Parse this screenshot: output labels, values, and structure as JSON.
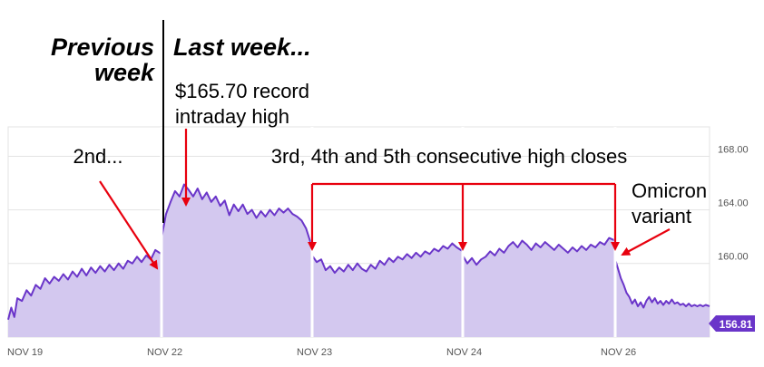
{
  "colors": {
    "line": "#6a35c9",
    "fill": "#d3c8ef",
    "annotation": "#e8000e",
    "grid": "#e3e3e3",
    "badge_bg": "#6a35c9",
    "badge_text": "#ffffff",
    "axis_text": "#555555",
    "divider": "#000000",
    "session_gap": "#ffffff"
  },
  "headings": {
    "previous_line1": "Previous",
    "previous_line2": "week",
    "last": "Last week..."
  },
  "annotations": {
    "record_line1": "$165.70 record",
    "record_line2": "intraday high",
    "second": "2nd...",
    "consecutive": "3rd, 4th and 5th consecutive high closes",
    "omicron_line1": "Omicron",
    "omicron_line2": "variant"
  },
  "chart_data": {
    "type": "area",
    "title": "",
    "xlabel": "",
    "ylabel": "",
    "ylim": [
      154.5,
      170.2
    ],
    "yticks": [
      160,
      164,
      168
    ],
    "ytick_labels": [
      "160.00",
      "164.00",
      "168.00"
    ],
    "xtick_labels": [
      "NOV 19",
      "NOV 22",
      "NOV 23",
      "NOV 24",
      "NOV 26"
    ],
    "sessions": [
      "NOV 19",
      "NOV 22",
      "NOV 23",
      "NOV 24",
      "NOV 26"
    ],
    "last_price_label": "156.81",
    "last_price": 156.81,
    "grid": true,
    "series": [
      {
        "sessions": [
          [
            [
              0.0,
              155.8
            ],
            [
              0.02,
              156.7
            ],
            [
              0.04,
              156.0
            ],
            [
              0.06,
              157.4
            ],
            [
              0.09,
              157.2
            ],
            [
              0.12,
              158.0
            ],
            [
              0.15,
              157.6
            ],
            [
              0.18,
              158.4
            ],
            [
              0.21,
              158.1
            ],
            [
              0.24,
              158.9
            ],
            [
              0.27,
              158.5
            ],
            [
              0.3,
              159.0
            ],
            [
              0.33,
              158.7
            ],
            [
              0.36,
              159.2
            ],
            [
              0.39,
              158.8
            ],
            [
              0.42,
              159.4
            ],
            [
              0.45,
              159.0
            ],
            [
              0.48,
              159.6
            ],
            [
              0.51,
              159.1
            ],
            [
              0.54,
              159.7
            ],
            [
              0.57,
              159.3
            ],
            [
              0.6,
              159.8
            ],
            [
              0.63,
              159.4
            ],
            [
              0.66,
              159.9
            ],
            [
              0.69,
              159.5
            ],
            [
              0.72,
              160.0
            ],
            [
              0.75,
              159.6
            ],
            [
              0.78,
              160.2
            ],
            [
              0.81,
              160.0
            ],
            [
              0.84,
              160.5
            ],
            [
              0.87,
              160.1
            ],
            [
              0.9,
              160.6
            ],
            [
              0.93,
              160.3
            ],
            [
              0.96,
              161.0
            ],
            [
              1.0,
              160.7
            ]
          ],
          [
            [
              0.0,
              161.9
            ],
            [
              0.03,
              163.7
            ],
            [
              0.06,
              164.6
            ],
            [
              0.09,
              165.4
            ],
            [
              0.12,
              165.0
            ],
            [
              0.15,
              165.9
            ],
            [
              0.18,
              165.5
            ],
            [
              0.21,
              165.0
            ],
            [
              0.24,
              165.6
            ],
            [
              0.27,
              164.8
            ],
            [
              0.3,
              165.3
            ],
            [
              0.33,
              164.6
            ],
            [
              0.36,
              165.0
            ],
            [
              0.39,
              164.3
            ],
            [
              0.42,
              164.7
            ],
            [
              0.45,
              163.6
            ],
            [
              0.48,
              164.4
            ],
            [
              0.51,
              163.9
            ],
            [
              0.54,
              164.4
            ],
            [
              0.57,
              163.7
            ],
            [
              0.6,
              164.0
            ],
            [
              0.63,
              163.4
            ],
            [
              0.66,
              163.9
            ],
            [
              0.69,
              163.5
            ],
            [
              0.72,
              164.0
            ],
            [
              0.75,
              163.6
            ],
            [
              0.78,
              164.1
            ],
            [
              0.81,
              163.8
            ],
            [
              0.84,
              164.1
            ],
            [
              0.87,
              163.7
            ],
            [
              0.9,
              163.5
            ],
            [
              0.93,
              163.2
            ],
            [
              0.96,
              162.6
            ],
            [
              1.0,
              161.2
            ]
          ],
          [
            [
              0.0,
              160.6
            ],
            [
              0.03,
              160.1
            ],
            [
              0.06,
              160.3
            ],
            [
              0.09,
              159.5
            ],
            [
              0.12,
              159.8
            ],
            [
              0.15,
              159.3
            ],
            [
              0.18,
              159.7
            ],
            [
              0.21,
              159.4
            ],
            [
              0.24,
              159.9
            ],
            [
              0.27,
              159.5
            ],
            [
              0.3,
              160.0
            ],
            [
              0.33,
              159.6
            ],
            [
              0.36,
              159.4
            ],
            [
              0.39,
              159.9
            ],
            [
              0.42,
              159.6
            ],
            [
              0.45,
              160.2
            ],
            [
              0.48,
              159.9
            ],
            [
              0.51,
              160.4
            ],
            [
              0.54,
              160.1
            ],
            [
              0.57,
              160.5
            ],
            [
              0.6,
              160.3
            ],
            [
              0.63,
              160.7
            ],
            [
              0.66,
              160.4
            ],
            [
              0.69,
              160.8
            ],
            [
              0.72,
              160.5
            ],
            [
              0.75,
              160.9
            ],
            [
              0.78,
              160.7
            ],
            [
              0.81,
              161.1
            ],
            [
              0.84,
              160.9
            ],
            [
              0.87,
              161.3
            ],
            [
              0.9,
              161.1
            ],
            [
              0.93,
              161.5
            ],
            [
              0.96,
              161.2
            ],
            [
              1.0,
              160.9
            ]
          ],
          [
            [
              0.0,
              160.6
            ],
            [
              0.03,
              160.0
            ],
            [
              0.06,
              160.4
            ],
            [
              0.09,
              159.9
            ],
            [
              0.12,
              160.3
            ],
            [
              0.15,
              160.5
            ],
            [
              0.18,
              160.9
            ],
            [
              0.21,
              160.6
            ],
            [
              0.24,
              161.1
            ],
            [
              0.27,
              160.8
            ],
            [
              0.3,
              161.3
            ],
            [
              0.33,
              161.6
            ],
            [
              0.36,
              161.2
            ],
            [
              0.39,
              161.7
            ],
            [
              0.42,
              161.4
            ],
            [
              0.45,
              161.0
            ],
            [
              0.48,
              161.5
            ],
            [
              0.51,
              161.2
            ],
            [
              0.54,
              161.6
            ],
            [
              0.57,
              161.3
            ],
            [
              0.6,
              161.0
            ],
            [
              0.63,
              161.4
            ],
            [
              0.66,
              161.1
            ],
            [
              0.69,
              160.8
            ],
            [
              0.72,
              161.2
            ],
            [
              0.75,
              160.9
            ],
            [
              0.78,
              161.3
            ],
            [
              0.81,
              161.0
            ],
            [
              0.84,
              161.4
            ],
            [
              0.87,
              161.2
            ],
            [
              0.9,
              161.6
            ],
            [
              0.93,
              161.4
            ],
            [
              0.96,
              161.9
            ],
            [
              1.0,
              161.7
            ]
          ],
          [
            [
              0.0,
              160.3
            ],
            [
              0.03,
              159.6
            ],
            [
              0.06,
              158.9
            ],
            [
              0.09,
              158.4
            ],
            [
              0.12,
              157.8
            ],
            [
              0.15,
              157.5
            ],
            [
              0.18,
              157.0
            ],
            [
              0.21,
              157.3
            ],
            [
              0.24,
              156.8
            ],
            [
              0.27,
              157.1
            ],
            [
              0.3,
              156.7
            ],
            [
              0.33,
              157.2
            ],
            [
              0.36,
              157.5
            ],
            [
              0.39,
              157.1
            ],
            [
              0.42,
              157.4
            ],
            [
              0.45,
              157.0
            ],
            [
              0.48,
              157.2
            ],
            [
              0.51,
              156.9
            ],
            [
              0.54,
              157.2
            ],
            [
              0.57,
              157.0
            ],
            [
              0.6,
              157.3
            ],
            [
              0.63,
              157.0
            ],
            [
              0.66,
              157.1
            ],
            [
              0.69,
              156.9
            ],
            [
              0.72,
              157.0
            ],
            [
              0.75,
              156.8
            ],
            [
              0.78,
              157.0
            ],
            [
              0.81,
              156.8
            ],
            [
              0.84,
              156.9
            ],
            [
              0.87,
              156.8
            ],
            [
              0.9,
              156.9
            ],
            [
              0.93,
              156.8
            ],
            [
              0.96,
              156.9
            ],
            [
              1.0,
              156.81
            ]
          ]
        ]
      }
    ]
  }
}
